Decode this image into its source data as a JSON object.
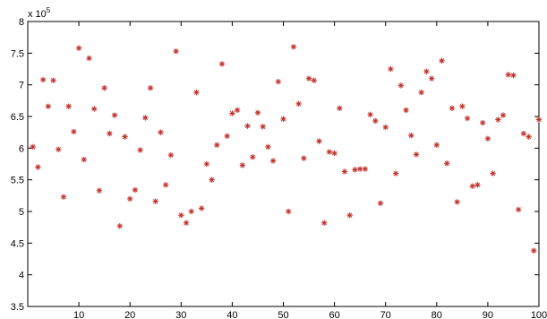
{
  "chart_data": {
    "type": "scatter",
    "title": "",
    "xlabel": "",
    "ylabel": "",
    "y_multiplier_label": "x 10",
    "y_multiplier_exponent": "5",
    "xlim": [
      0,
      100
    ],
    "ylim": [
      3.5,
      8
    ],
    "grid": false,
    "legend": "none",
    "marker": "*",
    "marker_color": "#c0302b",
    "x_ticks": [
      "10",
      "20",
      "30",
      "40",
      "50",
      "60",
      "70",
      "80",
      "90",
      "100"
    ],
    "x_tick_values": [
      10,
      20,
      30,
      40,
      50,
      60,
      70,
      80,
      90,
      100
    ],
    "y_ticks": [
      "3.5",
      "4",
      "4.5",
      "5",
      "5.5",
      "6",
      "6.5",
      "7",
      "7.5",
      "8"
    ],
    "y_tick_values": [
      3.5,
      4,
      4.5,
      5,
      5.5,
      6,
      6.5,
      7,
      7.5,
      8
    ],
    "series": [
      {
        "x": [
          1,
          2,
          3,
          4,
          5,
          6,
          7,
          8,
          9,
          10,
          11,
          12,
          13,
          14,
          15,
          16,
          17,
          18,
          19,
          20,
          21,
          22,
          23,
          24,
          25,
          26,
          27,
          28,
          29,
          30,
          31,
          32,
          33,
          34,
          35,
          36,
          37,
          38,
          39,
          40,
          41,
          42,
          43,
          44,
          45,
          46,
          47,
          48,
          49,
          50,
          51,
          52,
          53,
          54,
          55,
          56,
          57,
          58,
          59,
          60,
          61,
          62,
          63,
          64,
          65,
          66,
          67,
          68,
          69,
          70,
          71,
          72,
          73,
          74,
          75,
          76,
          77,
          78,
          79,
          80,
          81,
          82,
          83,
          84,
          85,
          86,
          87,
          88,
          89,
          90,
          91,
          92,
          93,
          94,
          95,
          96,
          97,
          98,
          99,
          100
        ],
        "y": [
          6.02,
          5.7,
          7.08,
          6.66,
          7.07,
          5.98,
          5.23,
          6.66,
          6.26,
          7.58,
          5.82,
          7.42,
          6.62,
          5.33,
          6.95,
          6.23,
          6.52,
          4.77,
          6.18,
          5.2,
          5.34,
          5.97,
          6.48,
          6.95,
          5.16,
          6.25,
          5.42,
          5.89,
          7.53,
          4.94,
          4.82,
          5.0,
          6.88,
          5.05,
          5.75,
          5.5,
          6.05,
          7.33,
          6.19,
          6.55,
          6.6,
          5.73,
          6.35,
          5.86,
          6.56,
          6.34,
          6.02,
          5.8,
          7.05,
          6.46,
          5.0,
          7.6,
          6.7,
          5.84,
          7.1,
          7.07,
          6.11,
          4.82,
          5.94,
          5.92,
          6.63,
          5.63,
          4.94,
          5.66,
          5.67,
          5.67,
          6.53,
          6.43,
          5.13,
          6.33,
          7.25,
          5.6,
          6.99,
          6.6,
          6.2,
          5.9,
          6.88,
          7.21,
          7.1,
          6.05,
          7.38,
          5.76,
          6.63,
          5.15,
          6.66,
          6.47,
          5.4,
          5.42,
          6.4,
          6.15,
          5.6,
          6.45,
          6.52,
          7.16,
          7.15,
          5.03,
          6.23,
          6.18,
          4.38,
          6.45
        ]
      }
    ]
  }
}
